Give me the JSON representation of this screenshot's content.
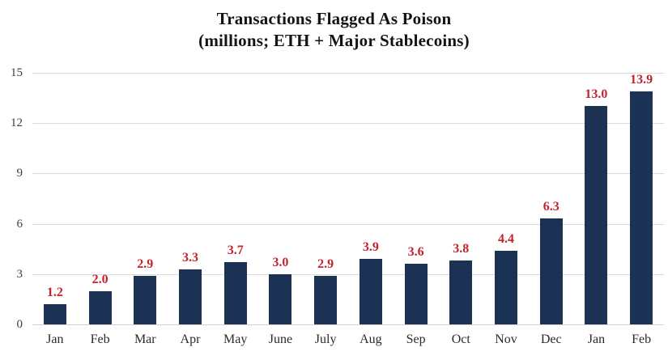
{
  "chart_data": {
    "type": "bar",
    "title": "Transactions Flagged As Poison",
    "subtitle": "(millions; ETH + Major Stablecoins)",
    "categories": [
      "Jan",
      "Feb",
      "Mar",
      "Apr",
      "May",
      "June",
      "July",
      "Aug",
      "Sep",
      "Oct",
      "Nov",
      "Dec",
      "Jan",
      "Feb"
    ],
    "values": [
      1.2,
      2.0,
      2.9,
      3.3,
      3.7,
      3.0,
      2.9,
      3.9,
      3.6,
      3.8,
      4.4,
      6.3,
      13.0,
      13.9
    ],
    "value_labels": [
      "1.2",
      "2.0",
      "2.9",
      "3.3",
      "3.7",
      "3.0",
      "2.9",
      "3.9",
      "3.6",
      "3.8",
      "4.4",
      "6.3",
      "13.0",
      "13.9"
    ],
    "xlabel": "",
    "ylabel": "",
    "y_ticks": [
      0,
      3,
      6,
      9,
      12,
      15
    ],
    "ylim": [
      0,
      15
    ],
    "grid": true,
    "legend_position": "none",
    "colors": {
      "bar": "#1c3254",
      "value_label": "#c2242c",
      "gridline": "#d9d9d9",
      "axis_text": "#404040",
      "title_text": "#141414",
      "background": "#ffffff"
    }
  }
}
